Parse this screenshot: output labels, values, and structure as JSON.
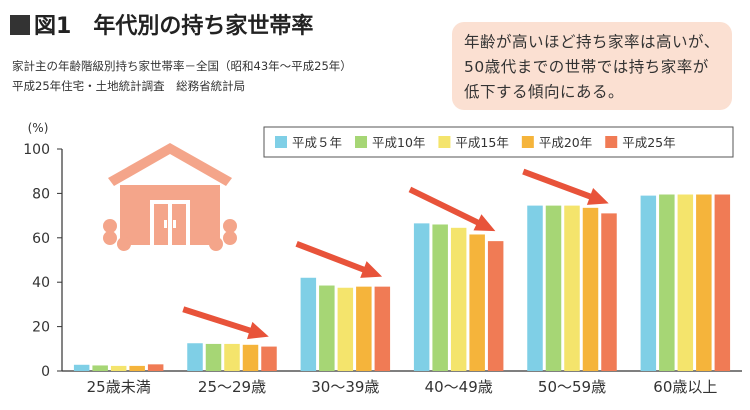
{
  "header": {
    "figure_label": "図1",
    "title": "年代別の持ち家世帯率",
    "subtitle_1": "家計主の年齢階級別持ち家世帯率－全国（昭和43年～平成25年）",
    "subtitle_2": "平成25年住宅・土地統計調査　総務省統計局"
  },
  "callout": {
    "text": "年齢が高いほど持ち家率は高いが、50歳代までの世帯では持ち家率が低下する傾向にある。"
  },
  "icons": {
    "house": "house-icon",
    "trend_arrow": "arrow-icon"
  },
  "chart_data": {
    "type": "bar",
    "categories": [
      "25歳未満",
      "25～29歳",
      "30～39歳",
      "40～49歳",
      "50～59歳",
      "60歳以上"
    ],
    "series": [
      {
        "name": "平成５年",
        "color": "#7fcfe6",
        "values": [
          2.8,
          12.5,
          42,
          66.5,
          74.5,
          79
        ]
      },
      {
        "name": "平成10年",
        "color": "#a6d675",
        "values": [
          2.5,
          12.2,
          38.5,
          66,
          74.5,
          79.5
        ]
      },
      {
        "name": "平成15年",
        "color": "#f4e46c",
        "values": [
          2.3,
          12.2,
          37.5,
          64.5,
          74.5,
          79.5
        ]
      },
      {
        "name": "平成20年",
        "color": "#f5b43b",
        "values": [
          2.3,
          11.8,
          38,
          61.5,
          73.5,
          79.5
        ]
      },
      {
        "name": "平成25年",
        "color": "#f07b55",
        "values": [
          3,
          11,
          38,
          58.5,
          71,
          79.5
        ]
      }
    ],
    "ylabel": "(%)",
    "ylim": [
      0,
      100
    ],
    "yticks": [
      0,
      20,
      40,
      60,
      80,
      100
    ],
    "grid": false,
    "legend_position": "top-right",
    "annotations": "downward trend arrows over the 25～29歳 to 50～59歳 groups"
  }
}
